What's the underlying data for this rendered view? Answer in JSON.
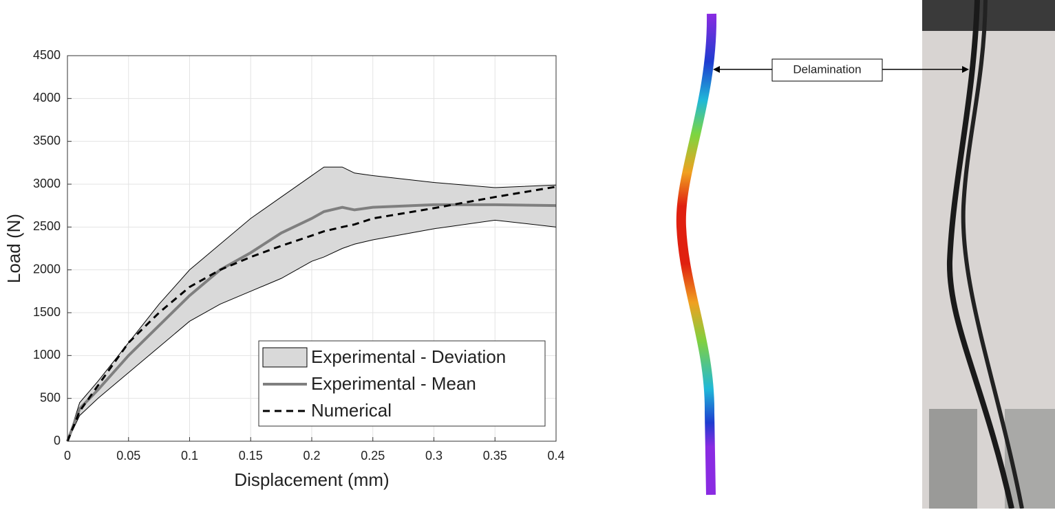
{
  "chart_data": {
    "type": "line",
    "xlabel": "Displacement (mm)",
    "ylabel": "Load (N)",
    "x": [
      0,
      0.01,
      0.025,
      0.05,
      0.075,
      0.1,
      0.125,
      0.15,
      0.175,
      0.2,
      0.21,
      0.225,
      0.235,
      0.25,
      0.3,
      0.35,
      0.4
    ],
    "series": [
      {
        "name": "Experimental - Deviation",
        "color": "#d9d9d9",
        "upper": [
          0,
          450,
          700,
          1150,
          1600,
          2000,
          2300,
          2600,
          2850,
          3100,
          3200,
          3200,
          3130,
          3100,
          3020,
          2960,
          2990
        ],
        "lower": [
          0,
          300,
          500,
          800,
          1100,
          1400,
          1600,
          1750,
          1900,
          2100,
          2150,
          2250,
          2300,
          2350,
          2480,
          2580,
          2500
        ]
      },
      {
        "name": "Experimental - Mean",
        "color": "#7f7f7f",
        "values": [
          0,
          380,
          600,
          1000,
          1350,
          1700,
          2000,
          2200,
          2430,
          2600,
          2680,
          2730,
          2700,
          2730,
          2760,
          2760,
          2750
        ]
      },
      {
        "name": "Numerical",
        "color": "#000000",
        "dashed": true,
        "values": [
          0,
          350,
          650,
          1150,
          1500,
          1800,
          2000,
          2150,
          2280,
          2400,
          2450,
          2500,
          2530,
          2600,
          2720,
          2850,
          2970
        ]
      }
    ],
    "xlim": [
      0,
      0.4
    ],
    "xticks": [
      0,
      0.05,
      0.1,
      0.15,
      0.2,
      0.25,
      0.3,
      0.35,
      0.4
    ],
    "ylim": [
      0,
      4500
    ],
    "yticks": [
      0,
      500,
      1000,
      1500,
      2000,
      2500,
      3000,
      3500,
      4000,
      4500
    ],
    "grid": true,
    "legend": "lower right"
  },
  "annotation": "Delamination"
}
